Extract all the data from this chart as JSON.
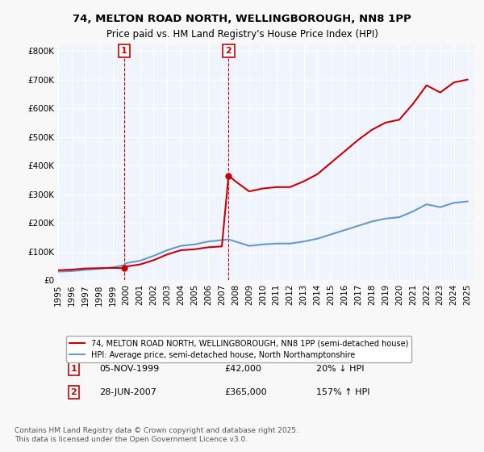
{
  "title": "74, MELTON ROAD NORTH, WELLINGBOROUGH, NN8 1PP",
  "subtitle": "Price paid vs. HM Land Registry's House Price Index (HPI)",
  "legend_line1": "74, MELTON ROAD NORTH, WELLINGBOROUGH, NN8 1PP (semi-detached house)",
  "legend_line2": "HPI: Average price, semi-detached house, North Northamptonshire",
  "transaction1_date": "05-NOV-1999",
  "transaction1_price": 42000,
  "transaction1_label": "20% ↓ HPI",
  "transaction1_year": 1999.84,
  "transaction2_date": "28-JUN-2007",
  "transaction2_price": 365000,
  "transaction2_label": "157% ↑ HPI",
  "transaction2_year": 2007.49,
  "red_color": "#cc0000",
  "blue_color": "#6699cc",
  "background_color": "#f0f4ff",
  "grid_color": "#ffffff",
  "ylim": [
    0,
    820000
  ],
  "xlim_start": 1995,
  "xlim_end": 2025.5,
  "footnote": "Contains HM Land Registry data © Crown copyright and database right 2025.\nThis data is licensed under the Open Government Licence v3.0.",
  "hpi_years": [
    1995,
    1996,
    1997,
    1998,
    1999,
    1999.84,
    2000,
    2001,
    2002,
    2003,
    2004,
    2005,
    2006,
    2007,
    2007.49,
    2008,
    2009,
    2010,
    2011,
    2012,
    2013,
    2014,
    2015,
    2016,
    2017,
    2018,
    2019,
    2020,
    2021,
    2022,
    2023,
    2024,
    2025
  ],
  "hpi_values": [
    30000,
    32000,
    36000,
    40000,
    45000,
    52500,
    60000,
    68000,
    85000,
    105000,
    120000,
    125000,
    135000,
    140000,
    142500,
    135000,
    120000,
    125000,
    128000,
    128000,
    135000,
    145000,
    160000,
    175000,
    190000,
    205000,
    215000,
    220000,
    240000,
    265000,
    255000,
    270000,
    275000
  ],
  "red_years": [
    1995,
    1996,
    1997,
    1998,
    1999,
    1999.84,
    2000,
    2001,
    2002,
    2003,
    2004,
    2005,
    2006,
    2007,
    2007.49,
    2008,
    2009,
    2010,
    2011,
    2012,
    2013,
    2014,
    2015,
    2016,
    2017,
    2018,
    2019,
    2020,
    2021,
    2022,
    2023,
    2024,
    2025
  ],
  "red_values": [
    35000,
    37000,
    41000,
    42000,
    43000,
    42000,
    48000,
    55000,
    70000,
    90000,
    105000,
    108000,
    115000,
    118000,
    365000,
    345000,
    310000,
    320000,
    325000,
    325000,
    345000,
    370000,
    410000,
    450000,
    490000,
    525000,
    550000,
    560000,
    615000,
    680000,
    655000,
    690000,
    700000
  ]
}
